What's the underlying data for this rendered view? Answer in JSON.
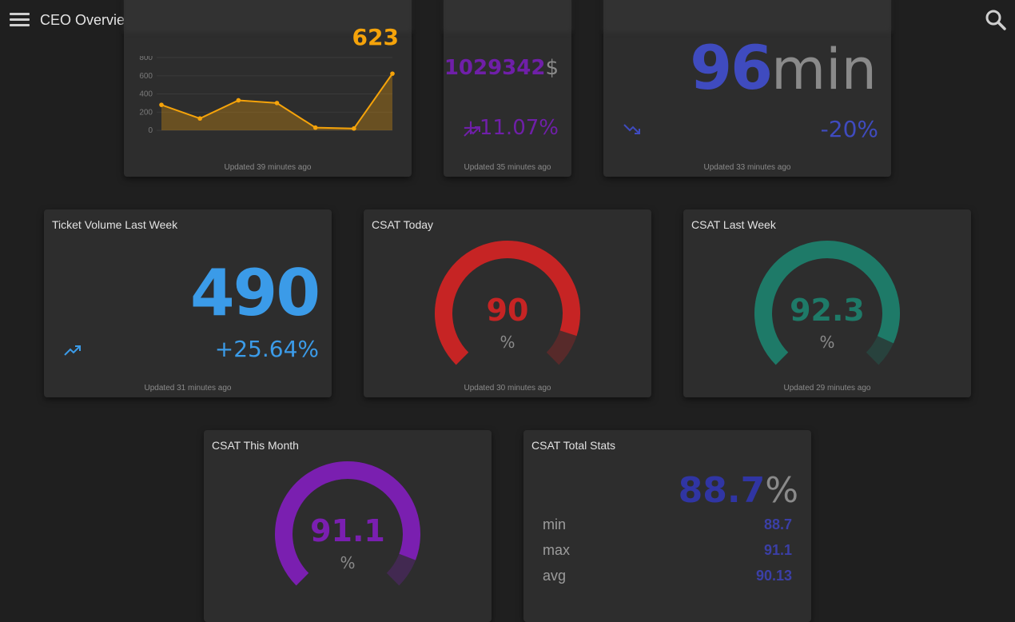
{
  "app": {
    "title": "CEO Overview"
  },
  "cards": {
    "chart_card": {
      "current_value": "623",
      "updated": "Updated 39 minutes ago"
    },
    "revenue": {
      "value": "1029342",
      "unit": "$",
      "change": "+11.07%",
      "updated": "Updated 35 minutes ago"
    },
    "time": {
      "value": "96",
      "unit": "min",
      "change": "-20%",
      "updated": "Updated 33 minutes ago"
    },
    "ticket_volume": {
      "title": "Ticket Volume Last Week",
      "value": "490",
      "change": "+25.64%",
      "updated": "Updated 31 minutes ago"
    },
    "csat_today": {
      "title": "CSAT Today",
      "value": "90",
      "unit": "%",
      "updated": "Updated 30 minutes ago"
    },
    "csat_last_week": {
      "title": "CSAT Last Week",
      "value": "92.3",
      "unit": "%",
      "updated": "Updated 29 minutes ago"
    },
    "csat_month": {
      "title": "CSAT This Month",
      "value": "91.1",
      "unit": "%"
    },
    "csat_total": {
      "title": "CSAT Total Stats",
      "value": "88.7",
      "unit": "%",
      "min_label": "min",
      "min_value": "88.7",
      "max_label": "max",
      "max_value": "91.1",
      "avg_label": "avg",
      "avg_value": "90.13"
    }
  },
  "colors": {
    "orange": "#f5a30a",
    "purple": "#6f1fa8",
    "indigo": "#3f4bbf",
    "blue": "#3b9be8",
    "red": "#c62424",
    "teal": "#1e7a68",
    "violet": "#7a1fb0",
    "navy": "#3035a3"
  },
  "chart_data": {
    "type": "area",
    "title": "",
    "xlabel": "",
    "ylabel": "",
    "ylim": [
      0,
      800
    ],
    "y_ticks": [
      "800",
      "600",
      "400",
      "200",
      "0"
    ],
    "x": [
      1,
      2,
      3,
      4,
      5,
      6,
      7
    ],
    "values": [
      280,
      130,
      330,
      300,
      30,
      20,
      623
    ]
  }
}
